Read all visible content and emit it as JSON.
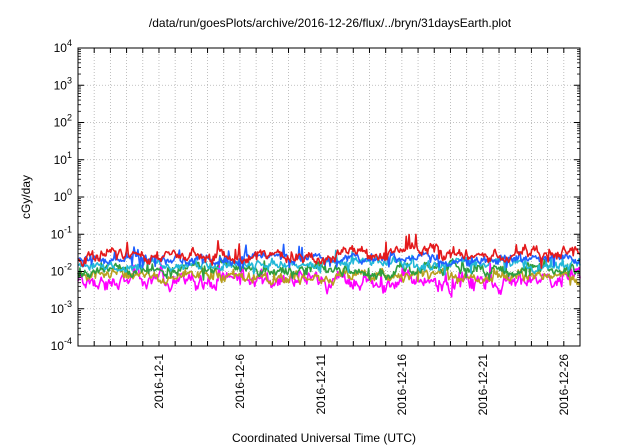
{
  "chart_data": {
    "type": "line",
    "title": "/data/run/goesPlots/archive/2016-12-26/flux/../bryn/31daysEarth.plot",
    "xlabel": "Coordinated Universal Time (UTC)",
    "ylabel": "cGy/day",
    "yscale": "log",
    "ylim": [
      0.0001,
      10000
    ],
    "yticks": [
      {
        "value": 0.0001,
        "base": "10",
        "exp": "-4"
      },
      {
        "value": 0.001,
        "base": "10",
        "exp": "-3"
      },
      {
        "value": 0.01,
        "base": "10",
        "exp": "-2"
      },
      {
        "value": 0.1,
        "base": "10",
        "exp": "-1"
      },
      {
        "value": 1,
        "base": "10",
        "exp": "0"
      },
      {
        "value": 10,
        "base": "10",
        "exp": "1"
      },
      {
        "value": 100,
        "base": "10",
        "exp": "2"
      },
      {
        "value": 1000,
        "base": "10",
        "exp": "3"
      },
      {
        "value": 10000,
        "base": "10",
        "exp": "4"
      }
    ],
    "xlim": [
      "2016-11-26T00:00",
      "2016-12-27T00:00"
    ],
    "xtick_labels": [
      {
        "date": "2016-12-01",
        "label": "2016-12-1"
      },
      {
        "date": "2016-12-06",
        "label": "2016-12-6"
      },
      {
        "date": "2016-12-11",
        "label": "2016-12-11"
      },
      {
        "date": "2016-12-16",
        "label": "2016-12-16"
      },
      {
        "date": "2016-12-21",
        "label": "2016-12-21"
      },
      {
        "date": "2016-12-26",
        "label": "2016-12-26"
      }
    ],
    "grid": true,
    "legend": "none",
    "series": [
      {
        "color": "#e41a1c",
        "level": 0.028,
        "spread": 0.18,
        "spike": 2.4
      },
      {
        "color": "#1f5fff",
        "level": 0.022,
        "spread": 0.14,
        "spike": 2.0
      },
      {
        "color": "#22b8d8",
        "level": 0.016,
        "spread": 0.15,
        "spike": 1.8
      },
      {
        "color": "#2e9e3f",
        "level": 0.011,
        "spread": 0.16,
        "spike": 1.7
      },
      {
        "color": "#b8a020",
        "level": 0.0075,
        "spread": 0.16,
        "spike": 1.6
      },
      {
        "color": "#ff00ff",
        "level": 0.0055,
        "spread": 0.22,
        "spike": 2.2
      }
    ]
  }
}
